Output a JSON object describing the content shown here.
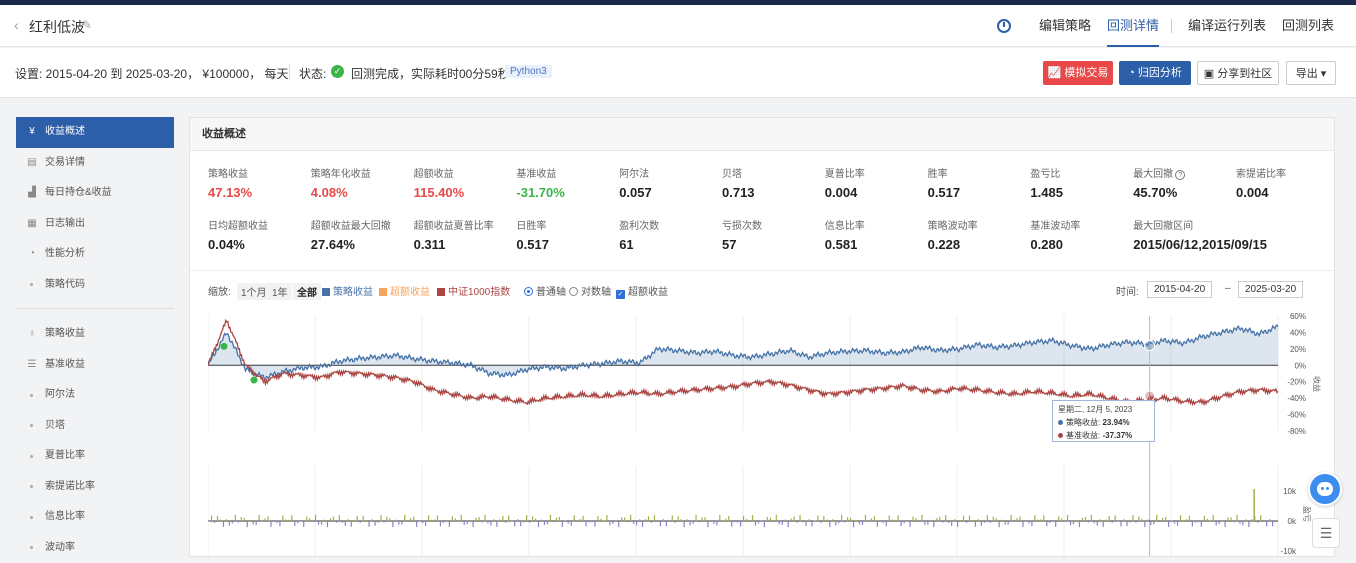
{
  "header": {
    "title": "红利低波",
    "nav": [
      {
        "label": "编辑策略",
        "active": false
      },
      {
        "label": "回测详情",
        "active": true
      },
      {
        "label": "编译运行列表",
        "active": false
      },
      {
        "label": "回测列表",
        "active": false
      }
    ]
  },
  "settings": {
    "text": "设置:  2015-04-20 到 2025-03-20，  ¥100000，  每天",
    "status_label": "状态:",
    "status_text": "回测完成，实际耗时00分59秒",
    "lang_badge": "Python3",
    "buttons": {
      "simulate": "模拟交易",
      "attribution": "归因分析",
      "share": "分享到社区",
      "export": "导出"
    }
  },
  "sidebar": {
    "items": [
      {
        "label": "收益概述",
        "icon": "yen-icon",
        "active": true,
        "kind": "main"
      },
      {
        "label": "交易详情",
        "icon": "doc-icon",
        "active": false,
        "kind": "main"
      },
      {
        "label": "每日持仓&收益",
        "icon": "bar-icon",
        "active": false,
        "kind": "main"
      },
      {
        "label": "日志输出",
        "icon": "log-icon",
        "active": false,
        "kind": "main"
      },
      {
        "label": "性能分析",
        "icon": "pie-icon",
        "active": false,
        "kind": "main"
      },
      {
        "label": "策略代码",
        "icon": "",
        "active": false,
        "kind": "sub"
      },
      {
        "label": "策略收益",
        "icon": "bulb-icon",
        "active": false,
        "kind": "main"
      },
      {
        "label": "基准收益",
        "icon": "db-icon",
        "active": false,
        "kind": "main"
      },
      {
        "label": "阿尔法",
        "icon": "",
        "active": false,
        "kind": "sub"
      },
      {
        "label": "贝塔",
        "icon": "",
        "active": false,
        "kind": "sub"
      },
      {
        "label": "夏普比率",
        "icon": "",
        "active": false,
        "kind": "sub"
      },
      {
        "label": "索提诺比率",
        "icon": "",
        "active": false,
        "kind": "sub"
      },
      {
        "label": "信息比率",
        "icon": "",
        "active": false,
        "kind": "sub"
      },
      {
        "label": "波动率",
        "icon": "",
        "active": false,
        "kind": "sub"
      }
    ]
  },
  "panel": {
    "title": "收益概述",
    "metrics_row1": [
      {
        "label": "策略收益",
        "value": "47.13%",
        "color": "red"
      },
      {
        "label": "策略年化收益",
        "value": "4.08%",
        "color": "red"
      },
      {
        "label": "超额收益",
        "value": "115.40%",
        "color": "red"
      },
      {
        "label": "基准收益",
        "value": "-31.70%",
        "color": "green"
      },
      {
        "label": "阿尔法",
        "value": "0.057",
        "color": ""
      },
      {
        "label": "贝塔",
        "value": "0.713",
        "color": ""
      },
      {
        "label": "夏普比率",
        "value": "0.004",
        "color": ""
      },
      {
        "label": "胜率",
        "value": "0.517",
        "color": ""
      },
      {
        "label": "盈亏比",
        "value": "1.485",
        "color": ""
      },
      {
        "label": "最大回撤",
        "value": "45.70%",
        "color": "",
        "help": "?"
      },
      {
        "label": "索提诺比率",
        "value": "0.004",
        "color": ""
      }
    ],
    "metrics_row2": [
      {
        "label": "日均超额收益",
        "value": "0.04%"
      },
      {
        "label": "超额收益最大回撤",
        "value": "27.64%"
      },
      {
        "label": "超额收益夏普比率",
        "value": "0.311"
      },
      {
        "label": "日胜率",
        "value": "0.517"
      },
      {
        "label": "盈利次数",
        "value": "61"
      },
      {
        "label": "亏损次数",
        "value": "57"
      },
      {
        "label": "信息比率",
        "value": "0.581"
      },
      {
        "label": "策略波动率",
        "value": "0.228"
      },
      {
        "label": "基准波动率",
        "value": "0.280"
      },
      {
        "label": "最大回撤区间",
        "value": "2015/06/12,2015/09/15"
      }
    ],
    "toolbar": {
      "zoom_label": "缩放:",
      "zoom_options": [
        "1个月",
        "1年",
        "全部"
      ],
      "zoom_selected": "全部",
      "legend": [
        {
          "label": "策略收益",
          "color": "#4572a7"
        },
        {
          "label": "超额收益",
          "color": "#f7a35c"
        },
        {
          "label": "中证1000指数",
          "color": "#aa4643"
        }
      ],
      "axis_normal": "普通轴",
      "axis_log": "对数轴",
      "excess_checkbox": "超额收益",
      "time_label": "时间:",
      "date_from": "2015-04-20",
      "date_sep": "–",
      "date_to": "2025-03-20"
    }
  },
  "chart_data": {
    "type": "line",
    "x_range": [
      "2015-04-20",
      "2025-03-20"
    ],
    "ylim": [
      -80,
      60
    ],
    "y_ticks": [
      "60%",
      "40%",
      "20%",
      "0%",
      "-20%",
      "-40%",
      "-60%",
      "-80%"
    ],
    "y_axis_label": "收益",
    "series": [
      {
        "name": "策略收益",
        "color": "#4572a7",
        "values": [
          0,
          40,
          -5,
          -15,
          -8,
          -3,
          -2,
          5,
          8,
          10,
          12,
          8,
          5,
          3,
          0,
          -10,
          -12,
          -5,
          -2,
          -4,
          0,
          2,
          5,
          3,
          20,
          18,
          15,
          17,
          12,
          10,
          14,
          18,
          10,
          15,
          17,
          18,
          15,
          16,
          22,
          18,
          20,
          25,
          22,
          24,
          28,
          30,
          23.94,
          20,
          25,
          28,
          26,
          30,
          27,
          35,
          40,
          45,
          38,
          47.13
        ]
      },
      {
        "name": "中证1000指数",
        "color": "#aa4643",
        "values": [
          0,
          55,
          0,
          -20,
          -10,
          -12,
          -15,
          -8,
          -10,
          -12,
          -15,
          -20,
          -30,
          -35,
          -40,
          -38,
          -42,
          -45,
          -40,
          -38,
          -36,
          -38,
          -35,
          -33,
          -35,
          -32,
          -30,
          -28,
          -26,
          -22,
          -20,
          -24,
          -30,
          -35,
          -33,
          -30,
          -28,
          -25,
          -30,
          -32,
          -28,
          -30,
          -33,
          -35,
          -32,
          -34,
          -37.37,
          -35,
          -40,
          -45,
          -42,
          -40,
          -44,
          -45,
          -38,
          -32,
          -30,
          -31.7
        ]
      }
    ],
    "lower_pane": {
      "type": "bar",
      "ylim": [
        -10,
        10
      ],
      "y_ticks": [
        "10k",
        "0k",
        "-10k"
      ],
      "y_axis_label": "盈亏"
    },
    "tooltip": {
      "date": "星期二, 12月 5, 2023",
      "rows": [
        {
          "label": "策略收益:",
          "value": "23.94%",
          "color": "#4572a7"
        },
        {
          "label": "基准收益:",
          "value": "-37.37%",
          "color": "#aa4643"
        }
      ]
    }
  }
}
